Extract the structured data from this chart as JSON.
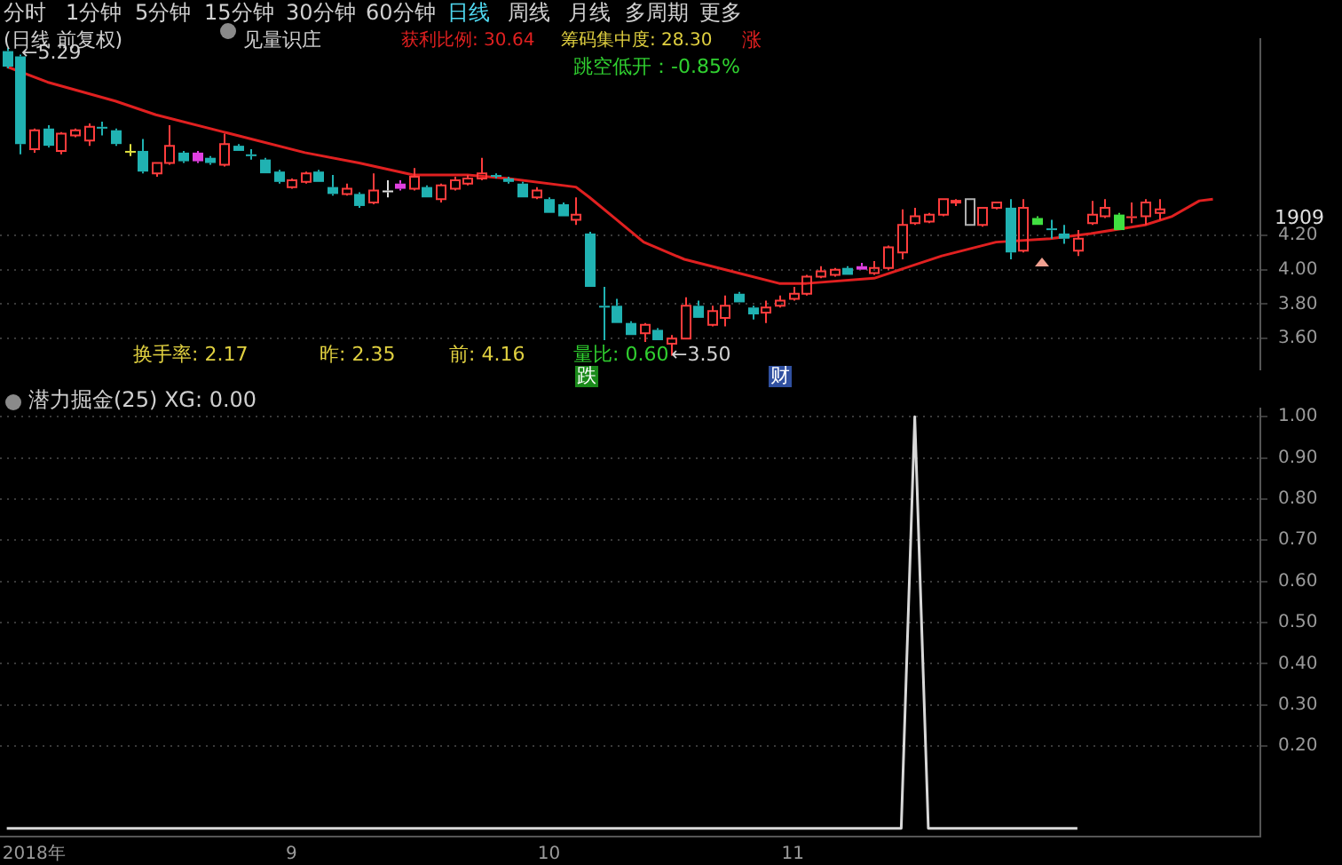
{
  "chart_data": [
    {
      "type": "candlestick",
      "tick_labels": "y",
      "grid": "y",
      "legend": false,
      "categories": [
        null,
        null,
        null,
        null,
        null,
        null,
        null,
        null,
        null,
        null,
        null,
        null,
        null,
        null,
        null,
        null,
        null,
        null,
        null,
        null,
        null,
        null,
        null,
        null,
        null,
        null,
        null,
        null,
        null,
        null,
        null,
        null,
        null,
        null,
        null,
        null,
        null,
        null,
        null,
        null,
        null,
        null,
        null,
        null,
        null,
        null,
        null,
        null,
        null,
        null,
        null,
        null,
        null,
        null,
        null,
        null,
        null,
        null,
        null,
        null,
        null,
        null,
        null,
        null,
        null,
        null,
        null,
        null,
        null,
        null,
        null,
        null,
        null,
        null,
        null,
        null,
        null,
        null,
        null,
        null,
        null,
        null,
        null,
        null,
        null,
        null,
        null,
        null,
        null,
        null,
        null,
        null,
        null
      ],
      "ohlc": [
        [
          5.27,
          5.29,
          5.17,
          5.18
        ],
        [
          5.24,
          5.25,
          4.67,
          4.73
        ],
        [
          4.7,
          4.82,
          4.68,
          4.81
        ],
        [
          4.82,
          4.84,
          4.71,
          4.72
        ],
        [
          4.69,
          4.8,
          4.67,
          4.79
        ],
        [
          4.78,
          4.82,
          4.77,
          4.81
        ],
        [
          4.75,
          4.85,
          4.72,
          4.83
        ],
        [
          4.83,
          4.86,
          4.78,
          4.82
        ],
        [
          4.81,
          4.82,
          4.72,
          4.73
        ],
        [
          4.69,
          4.73,
          4.66,
          4.69
        ],
        [
          4.69,
          4.76,
          4.56,
          4.57
        ],
        [
          4.56,
          4.62,
          4.54,
          4.62
        ],
        [
          4.62,
          4.84,
          4.61,
          4.72
        ],
        [
          4.68,
          4.69,
          4.62,
          4.63
        ],
        [
          4.68,
          4.69,
          4.62,
          4.63
        ],
        [
          4.65,
          4.66,
          4.61,
          4.62
        ],
        [
          4.61,
          4.79,
          4.6,
          4.73
        ],
        [
          4.72,
          4.73,
          4.69,
          4.69
        ],
        [
          4.67,
          4.7,
          4.64,
          4.66
        ],
        [
          4.64,
          4.65,
          4.56,
          4.56
        ],
        [
          4.57,
          4.58,
          4.5,
          4.51
        ],
        [
          4.48,
          4.53,
          4.47,
          4.52
        ],
        [
          4.51,
          4.57,
          4.5,
          4.56
        ],
        [
          4.57,
          4.58,
          4.51,
          4.51
        ],
        [
          4.48,
          4.55,
          4.43,
          4.44
        ],
        [
          4.44,
          4.5,
          4.43,
          4.47
        ],
        [
          4.44,
          4.45,
          4.36,
          4.37
        ],
        [
          4.39,
          4.56,
          4.38,
          4.46
        ],
        [
          4.46,
          4.52,
          4.42,
          4.46
        ],
        [
          4.5,
          4.52,
          4.46,
          4.47
        ],
        [
          4.47,
          4.59,
          4.46,
          4.54
        ],
        [
          4.48,
          4.49,
          4.42,
          4.42
        ],
        [
          4.41,
          4.5,
          4.39,
          4.49
        ],
        [
          4.47,
          4.54,
          4.46,
          4.52
        ],
        [
          4.5,
          4.55,
          4.49,
          4.53
        ],
        [
          4.53,
          4.65,
          4.52,
          4.56
        ],
        [
          4.55,
          4.56,
          4.53,
          4.54
        ],
        [
          4.53,
          4.54,
          4.5,
          4.51
        ],
        [
          4.5,
          4.51,
          4.42,
          4.42
        ],
        [
          4.42,
          4.48,
          4.41,
          4.46
        ],
        [
          4.41,
          4.42,
          4.33,
          4.33
        ],
        [
          4.38,
          4.39,
          4.31,
          4.31
        ],
        [
          4.29,
          4.42,
          4.26,
          4.32
        ],
        [
          4.21,
          4.22,
          3.9,
          3.9
        ],
        [
          3.79,
          3.9,
          3.59,
          3.79
        ],
        [
          3.79,
          3.83,
          3.69,
          3.69
        ],
        [
          3.69,
          3.7,
          3.62,
          3.62
        ],
        [
          3.63,
          3.69,
          3.58,
          3.68
        ],
        [
          3.65,
          3.66,
          3.59,
          3.59
        ],
        [
          3.57,
          3.62,
          3.5,
          3.6
        ],
        [
          3.6,
          3.84,
          3.6,
          3.79
        ],
        [
          3.79,
          3.82,
          3.72,
          3.72
        ],
        [
          3.68,
          3.79,
          3.67,
          3.76
        ],
        [
          3.72,
          3.85,
          3.67,
          3.79
        ],
        [
          3.86,
          3.87,
          3.81,
          3.81
        ],
        [
          3.78,
          3.79,
          3.71,
          3.74
        ],
        [
          3.75,
          3.82,
          3.69,
          3.78
        ],
        [
          3.79,
          3.85,
          3.78,
          3.82
        ],
        [
          3.83,
          3.9,
          3.82,
          3.86
        ],
        [
          3.86,
          3.97,
          3.85,
          3.96
        ],
        [
          3.96,
          4.02,
          3.95,
          3.99
        ],
        [
          3.97,
          4.01,
          3.96,
          4.0
        ],
        [
          4.01,
          4.02,
          3.97,
          3.97
        ],
        [
          4.02,
          4.04,
          4.0,
          4.0
        ],
        [
          3.98,
          4.05,
          3.97,
          4.01
        ],
        [
          4.01,
          4.14,
          4.0,
          4.13
        ],
        [
          4.1,
          4.35,
          4.06,
          4.26
        ],
        [
          4.27,
          4.36,
          4.26,
          4.31
        ],
        [
          4.28,
          4.33,
          4.27,
          4.32
        ],
        [
          4.32,
          4.41,
          4.31,
          4.41
        ],
        [
          4.39,
          4.41,
          4.37,
          4.4
        ],
        [
          4.26,
          4.41,
          4.26,
          4.41
        ],
        [
          4.26,
          4.36,
          4.25,
          4.36
        ],
        [
          4.36,
          4.39,
          4.35,
          4.39
        ],
        [
          4.36,
          4.41,
          4.06,
          4.1
        ],
        [
          4.11,
          4.41,
          4.1,
          4.36
        ],
        [
          4.3,
          4.31,
          4.26,
          4.26
        ],
        [
          4.24,
          4.29,
          4.18,
          4.24
        ],
        [
          4.21,
          4.26,
          4.15,
          4.18
        ],
        [
          4.11,
          4.23,
          4.08,
          4.18
        ],
        [
          4.27,
          4.4,
          4.26,
          4.32
        ],
        [
          4.31,
          4.41,
          4.3,
          4.36
        ],
        [
          4.32,
          4.33,
          4.23,
          4.23
        ],
        [
          4.31,
          4.39,
          4.27,
          4.31
        ],
        [
          4.31,
          4.41,
          4.26,
          4.39
        ],
        [
          4.33,
          4.41,
          4.29,
          4.35
        ],
        null,
        null,
        null,
        null,
        null,
        null,
        null
      ],
      "colors": [
        "#20b2b2",
        "#20b2b2",
        "#ff3c3c",
        "#20b2b2",
        "#ff3c3c",
        "#ff3c3c",
        "#ff3c3c",
        "#20b2b2",
        "#20b2b2",
        "#e0e040",
        "#20b2b2",
        "#ff3c3c",
        "#ff3c3c",
        "#20b2b2",
        "#e040e0",
        "#20b2b2",
        "#ff3c3c",
        "#20b2b2",
        "#20b2b2",
        "#20b2b2",
        "#20b2b2",
        "#ff3c3c",
        "#ff3c3c",
        "#20b2b2",
        "#20b2b2",
        "#ff3c3c",
        "#20b2b2",
        "#ff3c3c",
        "#e0e0e0",
        "#e040e0",
        "#ff3c3c",
        "#20b2b2",
        "#ff3c3c",
        "#ff3c3c",
        "#ff3c3c",
        "#ff3c3c",
        "#20b2b2",
        "#20b2b2",
        "#20b2b2",
        "#ff3c3c",
        "#20b2b2",
        "#20b2b2",
        "#ff3c3c",
        "#20b2b2",
        "#20b2b2",
        "#20b2b2",
        "#20b2b2",
        "#ff3c3c",
        "#20b2b2",
        "#ff3c3c",
        "#ff3c3c",
        "#20b2b2",
        "#ff3c3c",
        "#ff3c3c",
        "#20b2b2",
        "#20b2b2",
        "#ff3c3c",
        "#ff3c3c",
        "#ff3c3c",
        "#ff3c3c",
        "#ff3c3c",
        "#ff3c3c",
        "#20b2b2",
        "#e040e0",
        "#ff3c3c",
        "#ff3c3c",
        "#ff3c3c",
        "#ff3c3c",
        "#ff3c3c",
        "#ff3c3c",
        "#ff3c3c",
        "#b0b0b0",
        "#ff3c3c",
        "#ff3c3c",
        "#20b2b2",
        "#ff3c3c",
        "#40e040",
        "#20b2b2",
        "#20b2b2",
        "#ff3c3c",
        "#ff3c3c",
        "#ff3c3c",
        "#40e040",
        "#ff3c3c",
        "#ff3c3c",
        "#ff3c3c",
        null,
        null,
        null,
        null,
        null,
        null,
        null
      ],
      "series": [
        {
          "type": "line",
          "color": "#e02020",
          "values": [
            5.18,
            null,
            null,
            5.09,
            null,
            null,
            null,
            null,
            4.98,
            null,
            null,
            4.9,
            null,
            null,
            null,
            null,
            4.8,
            null,
            null,
            null,
            null,
            null,
            4.68,
            null,
            null,
            null,
            4.62,
            null,
            null,
            null,
            4.55,
            null,
            null,
            null,
            4.55,
            null,
            null,
            4.53,
            null,
            null,
            null,
            null,
            4.48,
            4.42,
            null,
            4.29,
            null,
            4.16,
            null,
            null,
            4.06,
            null,
            null,
            null,
            3.98,
            null,
            null,
            3.92,
            null,
            3.92,
            null,
            null,
            null,
            null,
            3.95,
            null,
            null,
            null,
            null,
            4.08,
            null,
            null,
            null,
            4.16,
            null,
            null,
            null,
            4.18,
            null,
            null,
            4.21,
            null,
            null,
            null,
            4.26,
            null,
            4.31,
            null,
            4.4,
            4.41,
            null,
            null,
            null
          ]
        }
      ],
      "ylim": [
        3.42,
        5.34
      ],
      "yticks": [
        {
          "value": 3.6,
          "label": "3.60"
        },
        {
          "value": 3.8,
          "label": "3.80"
        },
        {
          "value": 4.0,
          "label": "4.00"
        },
        {
          "value": 4.2,
          "label": "4.20"
        }
      ],
      "annotations": [
        "分时",
        "1分钟",
        "5分钟",
        "15分钟",
        "30分钟",
        "60分钟",
        "日线",
        "周线",
        "月线",
        "多周期",
        "更多",
        "(日线 前复权)",
        "见量识庄",
        "获利比例: 30.64",
        "筹码集中度: 28.30",
        "涨",
        "跳空低开：-0.85%",
        "←5.29",
        "换手率: 2.17",
        "昨: 2.35",
        "前: 4.16",
        "量比: 0.60",
        "←3.50",
        "跌",
        "财",
        "1909"
      ]
    },
    {
      "type": "line",
      "title": "潜力掘金(25) XG: 0.00",
      "grid": "y",
      "legend": false,
      "categories": [
        null,
        null,
        "2018年",
        null,
        null,
        null,
        null,
        null,
        null,
        null,
        null,
        null,
        null,
        null,
        null,
        null,
        null,
        null,
        null,
        null,
        null,
        "9",
        null,
        null,
        null,
        null,
        null,
        null,
        null,
        null,
        null,
        null,
        null,
        null,
        null,
        null,
        null,
        null,
        null,
        null,
        "10",
        null,
        null,
        null,
        null,
        null,
        null,
        null,
        null,
        null,
        null,
        null,
        null,
        null,
        null,
        null,
        null,
        null,
        "11",
        null,
        null,
        null,
        null,
        null,
        null,
        null,
        null,
        null,
        null,
        null,
        null,
        null,
        null,
        null,
        null,
        null,
        null,
        null,
        null,
        null,
        null,
        null,
        null,
        null,
        null,
        null,
        null,
        null,
        null,
        null,
        null,
        null,
        null
      ],
      "series": [
        {
          "color": "#d8d8d8",
          "values": [
            0,
            0,
            0,
            0,
            0,
            0,
            0,
            0,
            0,
            0,
            0,
            0,
            0,
            0,
            0,
            0,
            0,
            0,
            0,
            0,
            0,
            0,
            0,
            0,
            0,
            0,
            0,
            0,
            0,
            0,
            0,
            0,
            0,
            0,
            0,
            0,
            0,
            0,
            0,
            0,
            0,
            0,
            0,
            0,
            0,
            0,
            0,
            0,
            0,
            0,
            0,
            0,
            0,
            0,
            0,
            0,
            0,
            0,
            0,
            0,
            0,
            0,
            0,
            0,
            0,
            0,
            0,
            1,
            0,
            0,
            0,
            0,
            0,
            0,
            0,
            0,
            0,
            0,
            0,
            0,
            null,
            null,
            null,
            null,
            null,
            null,
            null,
            null,
            null,
            null,
            null,
            null,
            null
          ]
        }
      ],
      "ylim": [
        -0.02,
        1.02
      ],
      "yticks": [
        {
          "value": 0.2,
          "label": "0.20"
        },
        {
          "value": 0.3,
          "label": "0.30"
        },
        {
          "value": 0.4,
          "label": "0.40"
        },
        {
          "value": 0.5,
          "label": "0.50"
        },
        {
          "value": 0.6,
          "label": "0.60"
        },
        {
          "value": 0.7,
          "label": "0.70"
        },
        {
          "value": 0.8,
          "label": "0.80"
        },
        {
          "value": 0.9,
          "label": "0.90"
        },
        {
          "value": 1.0,
          "label": "1.00"
        }
      ]
    }
  ]
}
